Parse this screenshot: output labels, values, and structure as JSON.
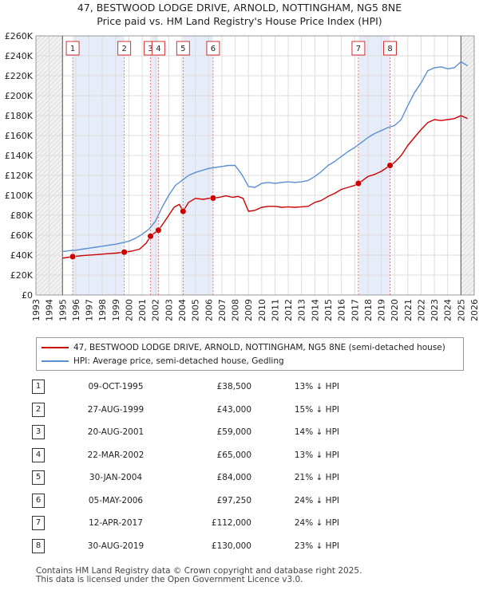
{
  "title_line1": "47, BESTWOOD LODGE DRIVE, ARNOLD, NOTTINGHAM, NG5 8NE",
  "title_line2": "Price paid vs. HM Land Registry's House Price Index (HPI)",
  "chart_data": {
    "type": "line",
    "title": "47, BESTWOOD LODGE DRIVE, ARNOLD, NOTTINGHAM, NG5 8NE — Price paid vs. HM Land Registry's House Price Index (HPI)",
    "xlabel": "",
    "ylabel": "",
    "xlim": [
      1993,
      2026
    ],
    "ylim": [
      0,
      260000
    ],
    "x_ticks": [
      1993,
      1994,
      1995,
      1996,
      1997,
      1998,
      1999,
      2000,
      2001,
      2002,
      2003,
      2004,
      2005,
      2006,
      2007,
      2008,
      2009,
      2010,
      2011,
      2012,
      2013,
      2014,
      2015,
      2016,
      2017,
      2018,
      2019,
      2020,
      2021,
      2022,
      2023,
      2024,
      2025,
      2026
    ],
    "y_ticks": [
      0,
      20000,
      40000,
      60000,
      80000,
      100000,
      120000,
      140000,
      160000,
      180000,
      200000,
      220000,
      240000,
      260000
    ],
    "y_tick_labels": [
      "£0",
      "£20K",
      "£40K",
      "£60K",
      "£80K",
      "£100K",
      "£120K",
      "£140K",
      "£160K",
      "£180K",
      "£200K",
      "£220K",
      "£240K",
      "£260K"
    ],
    "grid": true,
    "hatched_ranges": [
      [
        1993,
        1995.0
      ],
      [
        2025.0,
        2026
      ]
    ],
    "series": [
      {
        "name": "47, BESTWOOD LODGE DRIVE, ARNOLD, NOTTINGHAM, NG5 8NE (semi-detached house)",
        "color": "#cc0000",
        "x": [
          1995.0,
          1995.5,
          1995.77,
          1996.5,
          1997.5,
          1998.5,
          1999.0,
          1999.65,
          2000.2,
          2000.8,
          2001.3,
          2001.63,
          2001.9,
          2002.22,
          2002.6,
          2003.0,
          2003.4,
          2003.8,
          2004.08,
          2004.5,
          2005.0,
          2005.6,
          2006.0,
          2006.34,
          2006.8,
          2007.3,
          2007.8,
          2008.2,
          2008.6,
          2009.0,
          2009.5,
          2010.0,
          2010.5,
          2011.0,
          2011.5,
          2012.0,
          2012.5,
          2013.0,
          2013.5,
          2014.0,
          2014.5,
          2015.0,
          2015.5,
          2016.0,
          2016.5,
          2017.0,
          2017.28,
          2017.6,
          2018.0,
          2018.5,
          2019.0,
          2019.66,
          2020.0,
          2020.5,
          2021.0,
          2021.5,
          2022.0,
          2022.5,
          2023.0,
          2023.5,
          2024.0,
          2024.5,
          2025.0,
          2025.5
        ],
        "y": [
          37000,
          38000,
          38500,
          39500,
          40500,
          41500,
          42000,
          43000,
          44000,
          46000,
          52000,
          59000,
          62000,
          65000,
          72000,
          80000,
          88000,
          91000,
          84000,
          93000,
          97000,
          96000,
          97000,
          97250,
          98000,
          99500,
          98000,
          99000,
          97000,
          84000,
          85000,
          88000,
          89000,
          89000,
          88000,
          88500,
          88000,
          88500,
          89000,
          93000,
          95000,
          99000,
          102000,
          106000,
          108000,
          110000,
          112000,
          115000,
          119000,
          121000,
          124000,
          130000,
          133000,
          140000,
          150000,
          158000,
          166000,
          173000,
          176000,
          175000,
          176000,
          177000,
          180000,
          177000
        ]
      },
      {
        "name": "HPI: Average price, semi-detached house, Gedling",
        "color": "#5b8fd2",
        "x": [
          1995.0,
          1995.5,
          1996.0,
          1996.5,
          1997.0,
          1997.5,
          1998.0,
          1998.5,
          1999.0,
          1999.5,
          2000.0,
          2000.5,
          2001.0,
          2001.5,
          2002.0,
          2002.5,
          2003.0,
          2003.5,
          2004.0,
          2004.5,
          2005.0,
          2005.5,
          2006.0,
          2006.5,
          2007.0,
          2007.5,
          2008.0,
          2008.5,
          2009.0,
          2009.5,
          2010.0,
          2010.5,
          2011.0,
          2011.5,
          2012.0,
          2012.5,
          2013.0,
          2013.5,
          2014.0,
          2014.5,
          2015.0,
          2015.5,
          2016.0,
          2016.5,
          2017.0,
          2017.5,
          2018.0,
          2018.5,
          2019.0,
          2019.5,
          2020.0,
          2020.5,
          2021.0,
          2021.5,
          2022.0,
          2022.5,
          2023.0,
          2023.5,
          2024.0,
          2024.5,
          2025.0,
          2025.5
        ],
        "y": [
          43500,
          44500,
          45000,
          46000,
          47000,
          48000,
          49000,
          50000,
          51000,
          52500,
          54000,
          57000,
          61000,
          66000,
          74000,
          88000,
          100000,
          110000,
          115000,
          120000,
          123000,
          125000,
          127000,
          128000,
          129000,
          130000,
          130000,
          121000,
          109000,
          108000,
          112000,
          113000,
          112000,
          113000,
          113500,
          113000,
          113500,
          115000,
          119000,
          124000,
          130000,
          134000,
          139000,
          144000,
          148000,
          153000,
          158000,
          162000,
          165000,
          168000,
          170000,
          176000,
          190000,
          203000,
          213000,
          225000,
          228000,
          229000,
          227000,
          228000,
          234000,
          230000
        ]
      }
    ],
    "sales": [
      {
        "label": "1",
        "x": 1995.77,
        "price": 38500
      },
      {
        "label": "2",
        "x": 1999.65,
        "price": 43000
      },
      {
        "label": "3",
        "x": 2001.63,
        "price": 59000
      },
      {
        "label": "4",
        "x": 2002.22,
        "price": 65000
      },
      {
        "label": "5",
        "x": 2004.08,
        "price": 84000
      },
      {
        "label": "6",
        "x": 2006.34,
        "price": 97250
      },
      {
        "label": "7",
        "x": 2017.28,
        "price": 112000
      },
      {
        "label": "8",
        "x": 2019.66,
        "price": 130000
      }
    ]
  },
  "legend": {
    "property_label": "47, BESTWOOD LODGE DRIVE, ARNOLD, NOTTINGHAM, NG5 8NE (semi-detached house)",
    "hpi_label": "HPI: Average price, semi-detached house, Gedling",
    "property_color": "#cc0000",
    "hpi_color": "#5b8fd2"
  },
  "transactions": [
    {
      "num": "1",
      "date": "09-OCT-1995",
      "price": "£38,500",
      "hpi": "13% ↓ HPI"
    },
    {
      "num": "2",
      "date": "27-AUG-1999",
      "price": "£43,000",
      "hpi": "15% ↓ HPI"
    },
    {
      "num": "3",
      "date": "20-AUG-2001",
      "price": "£59,000",
      "hpi": "14% ↓ HPI"
    },
    {
      "num": "4",
      "date": "22-MAR-2002",
      "price": "£65,000",
      "hpi": "13% ↓ HPI"
    },
    {
      "num": "5",
      "date": "30-JAN-2004",
      "price": "£84,000",
      "hpi": "21% ↓ HPI"
    },
    {
      "num": "6",
      "date": "05-MAY-2006",
      "price": "£97,250",
      "hpi": "24% ↓ HPI"
    },
    {
      "num": "7",
      "date": "12-APR-2017",
      "price": "£112,000",
      "hpi": "24% ↓ HPI"
    },
    {
      "num": "8",
      "date": "30-AUG-2019",
      "price": "£130,000",
      "hpi": "23% ↓ HPI"
    }
  ],
  "footer": {
    "line1": "Contains HM Land Registry data © Crown copyright and database right 2025.",
    "line2": "This data is licensed under the Open Government Licence v3.0."
  }
}
